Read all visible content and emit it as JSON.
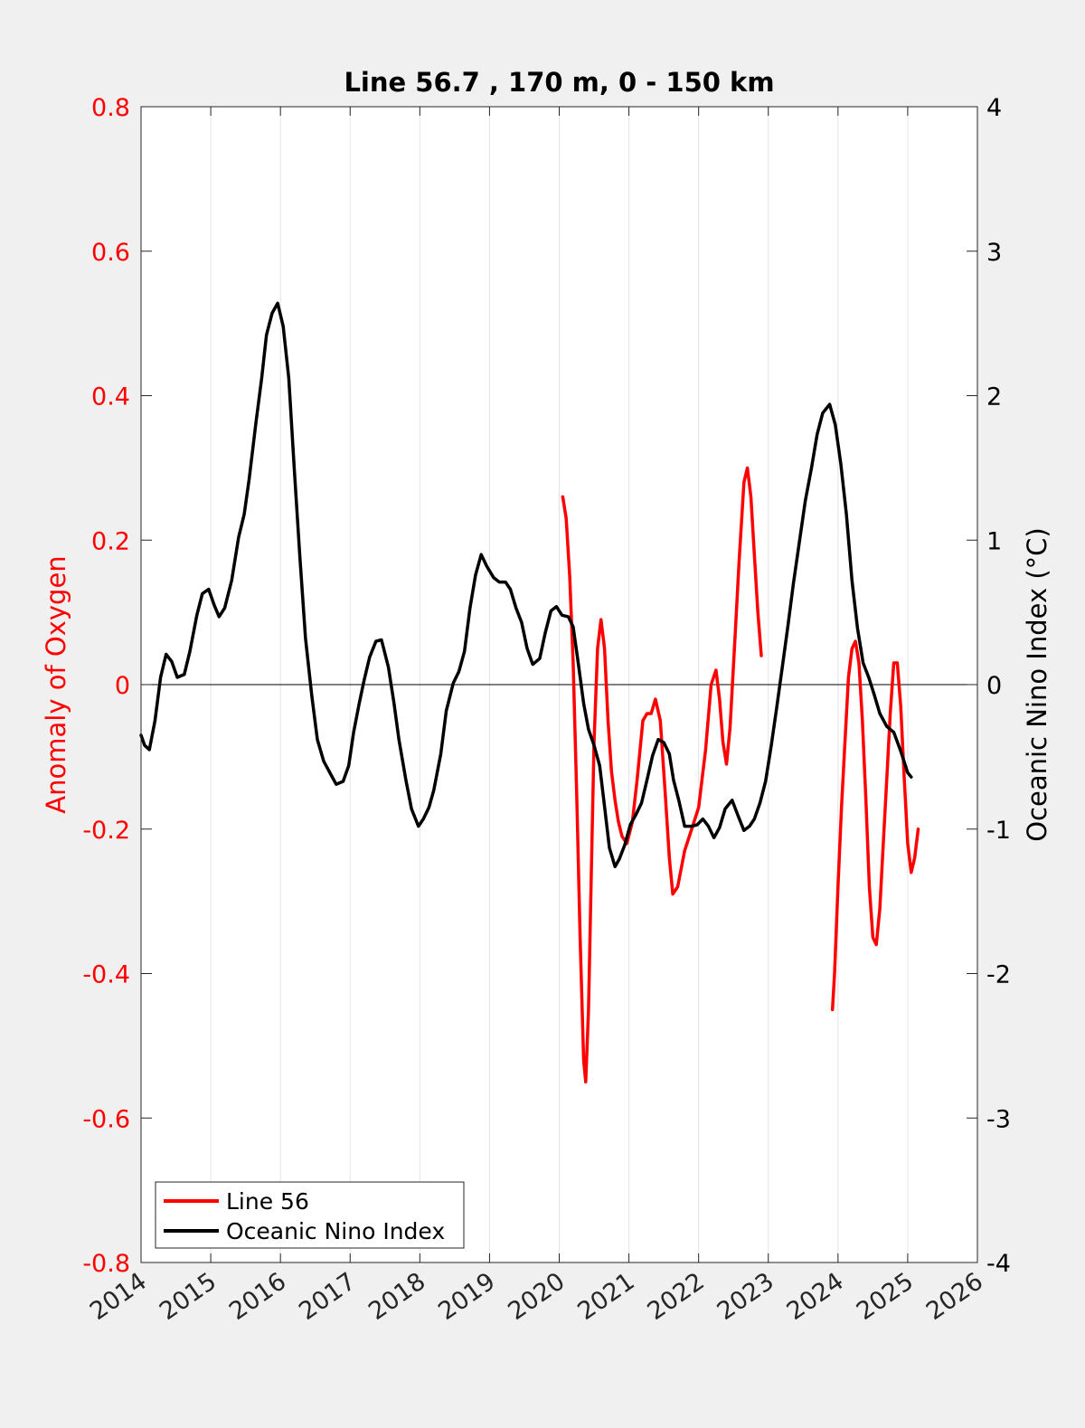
{
  "colors": {
    "background": "#f0f0f0",
    "plot_background": "#ffffff",
    "left_axis": "#ff0000",
    "right_axis": "#000000",
    "grid": "#e3e3e3"
  },
  "chart_data": {
    "type": "line",
    "title": "Line 56.7 , 170 m, 0 - 150 km",
    "xlabel": "",
    "ylabel_left": "Anomaly of Oxygen",
    "ylabel_right": "Oceanic Nino Index (°C)",
    "xlim": [
      2014,
      2026
    ],
    "ylim_left": [
      -0.8,
      0.8
    ],
    "ylim_right": [
      -4,
      4
    ],
    "x_ticks": [
      2014,
      2015,
      2016,
      2017,
      2018,
      2019,
      2020,
      2021,
      2022,
      2023,
      2024,
      2025,
      2026
    ],
    "x_tick_labels": [
      "2014",
      "2015",
      "2016",
      "2017",
      "2018",
      "2019",
      "2020",
      "2021",
      "2022",
      "2023",
      "2024",
      "2025",
      "2026"
    ],
    "y_ticks_left": [
      -0.8,
      -0.6,
      -0.4,
      -0.2,
      0,
      0.2,
      0.4,
      0.6,
      0.8
    ],
    "y_tick_labels_left": [
      "-0.8",
      "-0.6",
      "-0.4",
      "-0.2",
      "0",
      "0.2",
      "0.4",
      "0.6",
      "0.8"
    ],
    "y_ticks_right": [
      -4,
      -3,
      -2,
      -1,
      0,
      1,
      2,
      3,
      4
    ],
    "y_tick_labels_right": [
      "-4",
      "-3",
      "-2",
      "-1",
      "0",
      "1",
      "2",
      "3",
      "4"
    ],
    "vertical_grid": true,
    "zero_line": true,
    "legend": {
      "position": "bottom-left",
      "entries": [
        "Line 56",
        "Oceanic Nino Index"
      ]
    },
    "series": [
      {
        "name": "Line 56",
        "axis": "left",
        "color": "#ff0000",
        "segments": [
          [
            [
              2020.05,
              0.26
            ],
            [
              2020.1,
              0.23
            ],
            [
              2020.15,
              0.15
            ],
            [
              2020.2,
              0.03
            ],
            [
              2020.25,
              -0.15
            ],
            [
              2020.3,
              -0.35
            ],
            [
              2020.35,
              -0.52
            ],
            [
              2020.38,
              -0.55
            ],
            [
              2020.42,
              -0.45
            ],
            [
              2020.46,
              -0.26
            ],
            [
              2020.5,
              -0.08
            ],
            [
              2020.55,
              0.05
            ],
            [
              2020.6,
              0.09
            ],
            [
              2020.65,
              0.05
            ],
            [
              2020.7,
              -0.05
            ],
            [
              2020.75,
              -0.12
            ],
            [
              2020.8,
              -0.16
            ],
            [
              2020.85,
              -0.19
            ],
            [
              2020.9,
              -0.21
            ],
            [
              2020.97,
              -0.22
            ],
            [
              2021.05,
              -0.19
            ],
            [
              2021.12,
              -0.13
            ],
            [
              2021.2,
              -0.05
            ],
            [
              2021.26,
              -0.04
            ],
            [
              2021.32,
              -0.04
            ],
            [
              2021.38,
              -0.02
            ],
            [
              2021.45,
              -0.05
            ],
            [
              2021.52,
              -0.15
            ],
            [
              2021.58,
              -0.24
            ],
            [
              2021.63,
              -0.29
            ],
            [
              2021.7,
              -0.28
            ],
            [
              2021.8,
              -0.23
            ],
            [
              2021.9,
              -0.2
            ],
            [
              2022.0,
              -0.17
            ],
            [
              2022.1,
              -0.09
            ],
            [
              2022.18,
              0.0
            ],
            [
              2022.25,
              0.02
            ],
            [
              2022.3,
              -0.02
            ],
            [
              2022.35,
              -0.08
            ],
            [
              2022.4,
              -0.11
            ],
            [
              2022.45,
              -0.06
            ],
            [
              2022.52,
              0.06
            ],
            [
              2022.58,
              0.17
            ],
            [
              2022.65,
              0.28
            ],
            [
              2022.7,
              0.3
            ],
            [
              2022.75,
              0.26
            ],
            [
              2022.8,
              0.18
            ],
            [
              2022.85,
              0.1
            ],
            [
              2022.9,
              0.04
            ]
          ],
          [
            [
              2023.92,
              -0.45
            ],
            [
              2023.95,
              -0.4
            ],
            [
              2024.0,
              -0.28
            ],
            [
              2024.05,
              -0.17
            ],
            [
              2024.1,
              -0.08
            ],
            [
              2024.15,
              0.01
            ],
            [
              2024.2,
              0.05
            ],
            [
              2024.25,
              0.06
            ],
            [
              2024.3,
              0.03
            ],
            [
              2024.35,
              -0.05
            ],
            [
              2024.4,
              -0.16
            ],
            [
              2024.45,
              -0.28
            ],
            [
              2024.5,
              -0.35
            ],
            [
              2024.55,
              -0.36
            ],
            [
              2024.6,
              -0.31
            ],
            [
              2024.65,
              -0.22
            ],
            [
              2024.7,
              -0.13
            ],
            [
              2024.75,
              -0.04
            ],
            [
              2024.8,
              0.03
            ],
            [
              2024.85,
              0.03
            ],
            [
              2024.9,
              -0.03
            ],
            [
              2024.95,
              -0.13
            ],
            [
              2025.0,
              -0.22
            ],
            [
              2025.05,
              -0.26
            ],
            [
              2025.1,
              -0.24
            ],
            [
              2025.15,
              -0.2
            ]
          ]
        ]
      },
      {
        "name": "Oceanic Nino Index",
        "axis": "right",
        "color": "#000000",
        "segments": [
          [
            [
              2014.0,
              -0.35
            ],
            [
              2014.05,
              -0.42
            ],
            [
              2014.12,
              -0.45
            ],
            [
              2014.2,
              -0.25
            ],
            [
              2014.28,
              0.05
            ],
            [
              2014.36,
              0.21
            ],
            [
              2014.44,
              0.16
            ],
            [
              2014.52,
              0.05
            ],
            [
              2014.62,
              0.07
            ],
            [
              2014.7,
              0.23
            ],
            [
              2014.8,
              0.48
            ],
            [
              2014.88,
              0.63
            ],
            [
              2014.97,
              0.66
            ],
            [
              2015.05,
              0.55
            ],
            [
              2015.12,
              0.47
            ],
            [
              2015.2,
              0.53
            ],
            [
              2015.3,
              0.72
            ],
            [
              2015.4,
              1.02
            ],
            [
              2015.48,
              1.18
            ],
            [
              2015.55,
              1.42
            ],
            [
              2015.65,
              1.82
            ],
            [
              2015.73,
              2.12
            ],
            [
              2015.8,
              2.42
            ],
            [
              2015.88,
              2.57
            ],
            [
              2015.96,
              2.64
            ],
            [
              2016.04,
              2.48
            ],
            [
              2016.12,
              2.12
            ],
            [
              2016.2,
              1.48
            ],
            [
              2016.28,
              0.88
            ],
            [
              2016.36,
              0.32
            ],
            [
              2016.45,
              -0.08
            ],
            [
              2016.53,
              -0.38
            ],
            [
              2016.62,
              -0.53
            ],
            [
              2016.72,
              -0.62
            ],
            [
              2016.8,
              -0.69
            ],
            [
              2016.9,
              -0.67
            ],
            [
              2016.98,
              -0.56
            ],
            [
              2017.05,
              -0.33
            ],
            [
              2017.13,
              -0.13
            ],
            [
              2017.2,
              0.03
            ],
            [
              2017.28,
              0.19
            ],
            [
              2017.37,
              0.3
            ],
            [
              2017.45,
              0.31
            ],
            [
              2017.55,
              0.12
            ],
            [
              2017.63,
              -0.13
            ],
            [
              2017.7,
              -0.38
            ],
            [
              2017.8,
              -0.66
            ],
            [
              2017.88,
              -0.86
            ],
            [
              2017.98,
              -0.98
            ],
            [
              2018.05,
              -0.93
            ],
            [
              2018.13,
              -0.85
            ],
            [
              2018.2,
              -0.73
            ],
            [
              2018.3,
              -0.48
            ],
            [
              2018.38,
              -0.18
            ],
            [
              2018.48,
              0.01
            ],
            [
              2018.56,
              0.09
            ],
            [
              2018.64,
              0.23
            ],
            [
              2018.72,
              0.53
            ],
            [
              2018.8,
              0.76
            ],
            [
              2018.88,
              0.9
            ],
            [
              2018.96,
              0.82
            ],
            [
              2019.06,
              0.74
            ],
            [
              2019.14,
              0.71
            ],
            [
              2019.23,
              0.71
            ],
            [
              2019.3,
              0.66
            ],
            [
              2019.38,
              0.53
            ],
            [
              2019.46,
              0.43
            ],
            [
              2019.54,
              0.25
            ],
            [
              2019.62,
              0.14
            ],
            [
              2019.72,
              0.18
            ],
            [
              2019.8,
              0.36
            ],
            [
              2019.88,
              0.51
            ],
            [
              2019.96,
              0.54
            ],
            [
              2020.04,
              0.48
            ],
            [
              2020.13,
              0.47
            ],
            [
              2020.2,
              0.4
            ],
            [
              2020.27,
              0.16
            ],
            [
              2020.35,
              -0.13
            ],
            [
              2020.42,
              -0.31
            ],
            [
              2020.5,
              -0.42
            ],
            [
              2020.58,
              -0.56
            ],
            [
              2020.64,
              -0.8
            ],
            [
              2020.72,
              -1.13
            ],
            [
              2020.8,
              -1.26
            ],
            [
              2020.86,
              -1.21
            ],
            [
              2020.94,
              -1.11
            ],
            [
              2021.02,
              -0.97
            ],
            [
              2021.1,
              -0.9
            ],
            [
              2021.18,
              -0.82
            ],
            [
              2021.26,
              -0.66
            ],
            [
              2021.34,
              -0.49
            ],
            [
              2021.42,
              -0.38
            ],
            [
              2021.5,
              -0.4
            ],
            [
              2021.58,
              -0.48
            ],
            [
              2021.64,
              -0.66
            ],
            [
              2021.72,
              -0.81
            ],
            [
              2021.8,
              -0.98
            ],
            [
              2021.9,
              -0.98
            ],
            [
              2021.98,
              -0.97
            ],
            [
              2022.06,
              -0.93
            ],
            [
              2022.14,
              -0.98
            ],
            [
              2022.22,
              -1.06
            ],
            [
              2022.3,
              -0.99
            ],
            [
              2022.38,
              -0.86
            ],
            [
              2022.48,
              -0.8
            ],
            [
              2022.56,
              -0.9
            ],
            [
              2022.65,
              -1.01
            ],
            [
              2022.73,
              -0.98
            ],
            [
              2022.8,
              -0.93
            ],
            [
              2022.88,
              -0.82
            ],
            [
              2022.96,
              -0.67
            ],
            [
              2023.04,
              -0.43
            ],
            [
              2023.12,
              -0.16
            ],
            [
              2023.2,
              0.12
            ],
            [
              2023.28,
              0.4
            ],
            [
              2023.36,
              0.7
            ],
            [
              2023.45,
              1.0
            ],
            [
              2023.53,
              1.27
            ],
            [
              2023.62,
              1.5
            ],
            [
              2023.7,
              1.73
            ],
            [
              2023.78,
              1.88
            ],
            [
              2023.88,
              1.94
            ],
            [
              2023.96,
              1.8
            ],
            [
              2024.04,
              1.53
            ],
            [
              2024.12,
              1.18
            ],
            [
              2024.2,
              0.72
            ],
            [
              2024.28,
              0.39
            ],
            [
              2024.36,
              0.15
            ],
            [
              2024.44,
              0.05
            ],
            [
              2024.52,
              -0.07
            ],
            [
              2024.6,
              -0.2
            ],
            [
              2024.7,
              -0.29
            ],
            [
              2024.8,
              -0.33
            ],
            [
              2024.9,
              -0.46
            ],
            [
              2025.0,
              -0.61
            ],
            [
              2025.05,
              -0.64
            ]
          ]
        ]
      }
    ]
  }
}
